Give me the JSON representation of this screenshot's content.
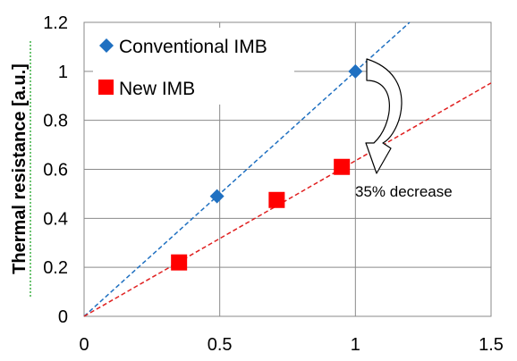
{
  "chart_data": {
    "type": "scatter",
    "title": "",
    "xlabel": "",
    "ylabel": "Thermal resistance  [a.u.]",
    "xlim": [
      0,
      1.5
    ],
    "ylim": [
      0,
      1.2
    ],
    "x_ticks": [
      "0",
      "0.5",
      "1",
      "1.5"
    ],
    "y_ticks": [
      "0",
      "0.2",
      "0.4",
      "0.6",
      "0.8",
      "1",
      "1.2"
    ],
    "grid": true,
    "legend_position": "top-left",
    "series": [
      {
        "name": "Conventional IMB",
        "marker": "diamond",
        "color": "#1f70c1",
        "points": [
          [
            0.49,
            0.49
          ],
          [
            1.0,
            1.0
          ]
        ],
        "trendline": {
          "slope": 1.0,
          "intercept": 0,
          "color": "#1f70c1",
          "style": "dashed"
        }
      },
      {
        "name": "New IMB",
        "marker": "square",
        "color": "#ff0000",
        "points": [
          [
            0.35,
            0.22
          ],
          [
            0.71,
            0.475
          ],
          [
            0.95,
            0.61
          ]
        ],
        "trendline": {
          "slope": 0.635,
          "intercept": 0,
          "color": "#e02020",
          "style": "dashed"
        }
      }
    ],
    "annotation": {
      "text": "35% decrease"
    }
  }
}
